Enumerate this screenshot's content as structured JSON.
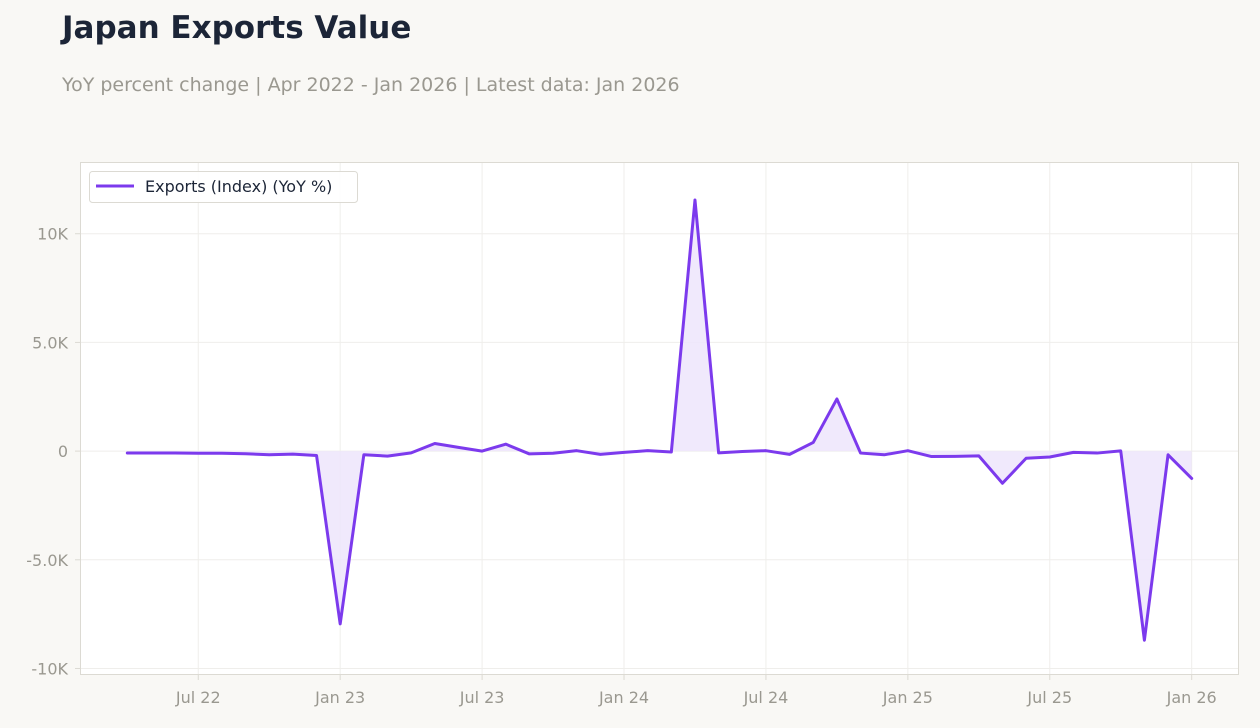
{
  "header": {
    "title": "Japan Exports Value",
    "subtitle": "YoY percent change | Apr 2022 - Jan 2026 | Latest data: Jan 2026"
  },
  "colors": {
    "line": "#7c3aed",
    "fill": "#ede5fb",
    "grid": "#efeeeb",
    "frame": "#dcdad3",
    "tick_text": "#9a9890",
    "title": "#1c2537",
    "background": "#f9f8f5",
    "plot_background": "#ffffff"
  },
  "chart_data": {
    "type": "area",
    "title": "Japan Exports Value",
    "subtitle": "YoY percent change | Apr 2022 - Jan 2026 | Latest data: Jan 2026",
    "xlabel": "",
    "ylabel": "",
    "x_start": "2022-04",
    "x_end": "2026-01",
    "xlim": [
      "2022-02",
      "2026-03"
    ],
    "ylim": [
      -10300,
      13300
    ],
    "grid": true,
    "legend_position": "top-left",
    "x_ticks": [
      {
        "date": "2022-07",
        "label": "Jul 22"
      },
      {
        "date": "2023-01",
        "label": "Jan 23"
      },
      {
        "date": "2023-07",
        "label": "Jul 23"
      },
      {
        "date": "2024-01",
        "label": "Jan 24"
      },
      {
        "date": "2024-07",
        "label": "Jul 24"
      },
      {
        "date": "2025-01",
        "label": "Jan 25"
      },
      {
        "date": "2025-07",
        "label": "Jul 25"
      },
      {
        "date": "2026-01",
        "label": "Jan 26"
      }
    ],
    "y_ticks": [
      {
        "value": 10000,
        "label": "10K"
      },
      {
        "value": 5000,
        "label": "5.0K"
      },
      {
        "value": 0,
        "label": "0"
      },
      {
        "value": -5000,
        "label": "-5.0K"
      },
      {
        "value": -10000,
        "label": "-10K"
      }
    ],
    "series": [
      {
        "name": "Exports (Index) (YoY %)",
        "x": [
          "2022-04",
          "2022-05",
          "2022-06",
          "2022-07",
          "2022-08",
          "2022-09",
          "2022-10",
          "2022-11",
          "2022-12",
          "2023-01",
          "2023-02",
          "2023-03",
          "2023-04",
          "2023-05",
          "2023-06",
          "2023-07",
          "2023-08",
          "2023-09",
          "2023-10",
          "2023-11",
          "2023-12",
          "2024-01",
          "2024-02",
          "2024-03",
          "2024-04",
          "2024-05",
          "2024-06",
          "2024-07",
          "2024-08",
          "2024-09",
          "2024-10",
          "2024-11",
          "2024-12",
          "2025-01",
          "2025-02",
          "2025-03",
          "2025-04",
          "2025-05",
          "2025-06",
          "2025-07",
          "2025-08",
          "2025-09",
          "2025-10",
          "2025-11",
          "2025-12",
          "2026-01"
        ],
        "values": [
          -90,
          -90,
          -90,
          -100,
          -100,
          -120,
          -170,
          -140,
          -200,
          -7950,
          -170,
          -230,
          -80,
          350,
          170,
          0,
          320,
          -130,
          -100,
          20,
          -150,
          -60,
          20,
          -40,
          11550,
          -80,
          -20,
          20,
          -150,
          400,
          2400,
          -90,
          -170,
          20,
          -250,
          -240,
          -220,
          -1480,
          -330,
          -270,
          -60,
          -90,
          10,
          -8700,
          -170,
          -1260
        ]
      }
    ]
  }
}
